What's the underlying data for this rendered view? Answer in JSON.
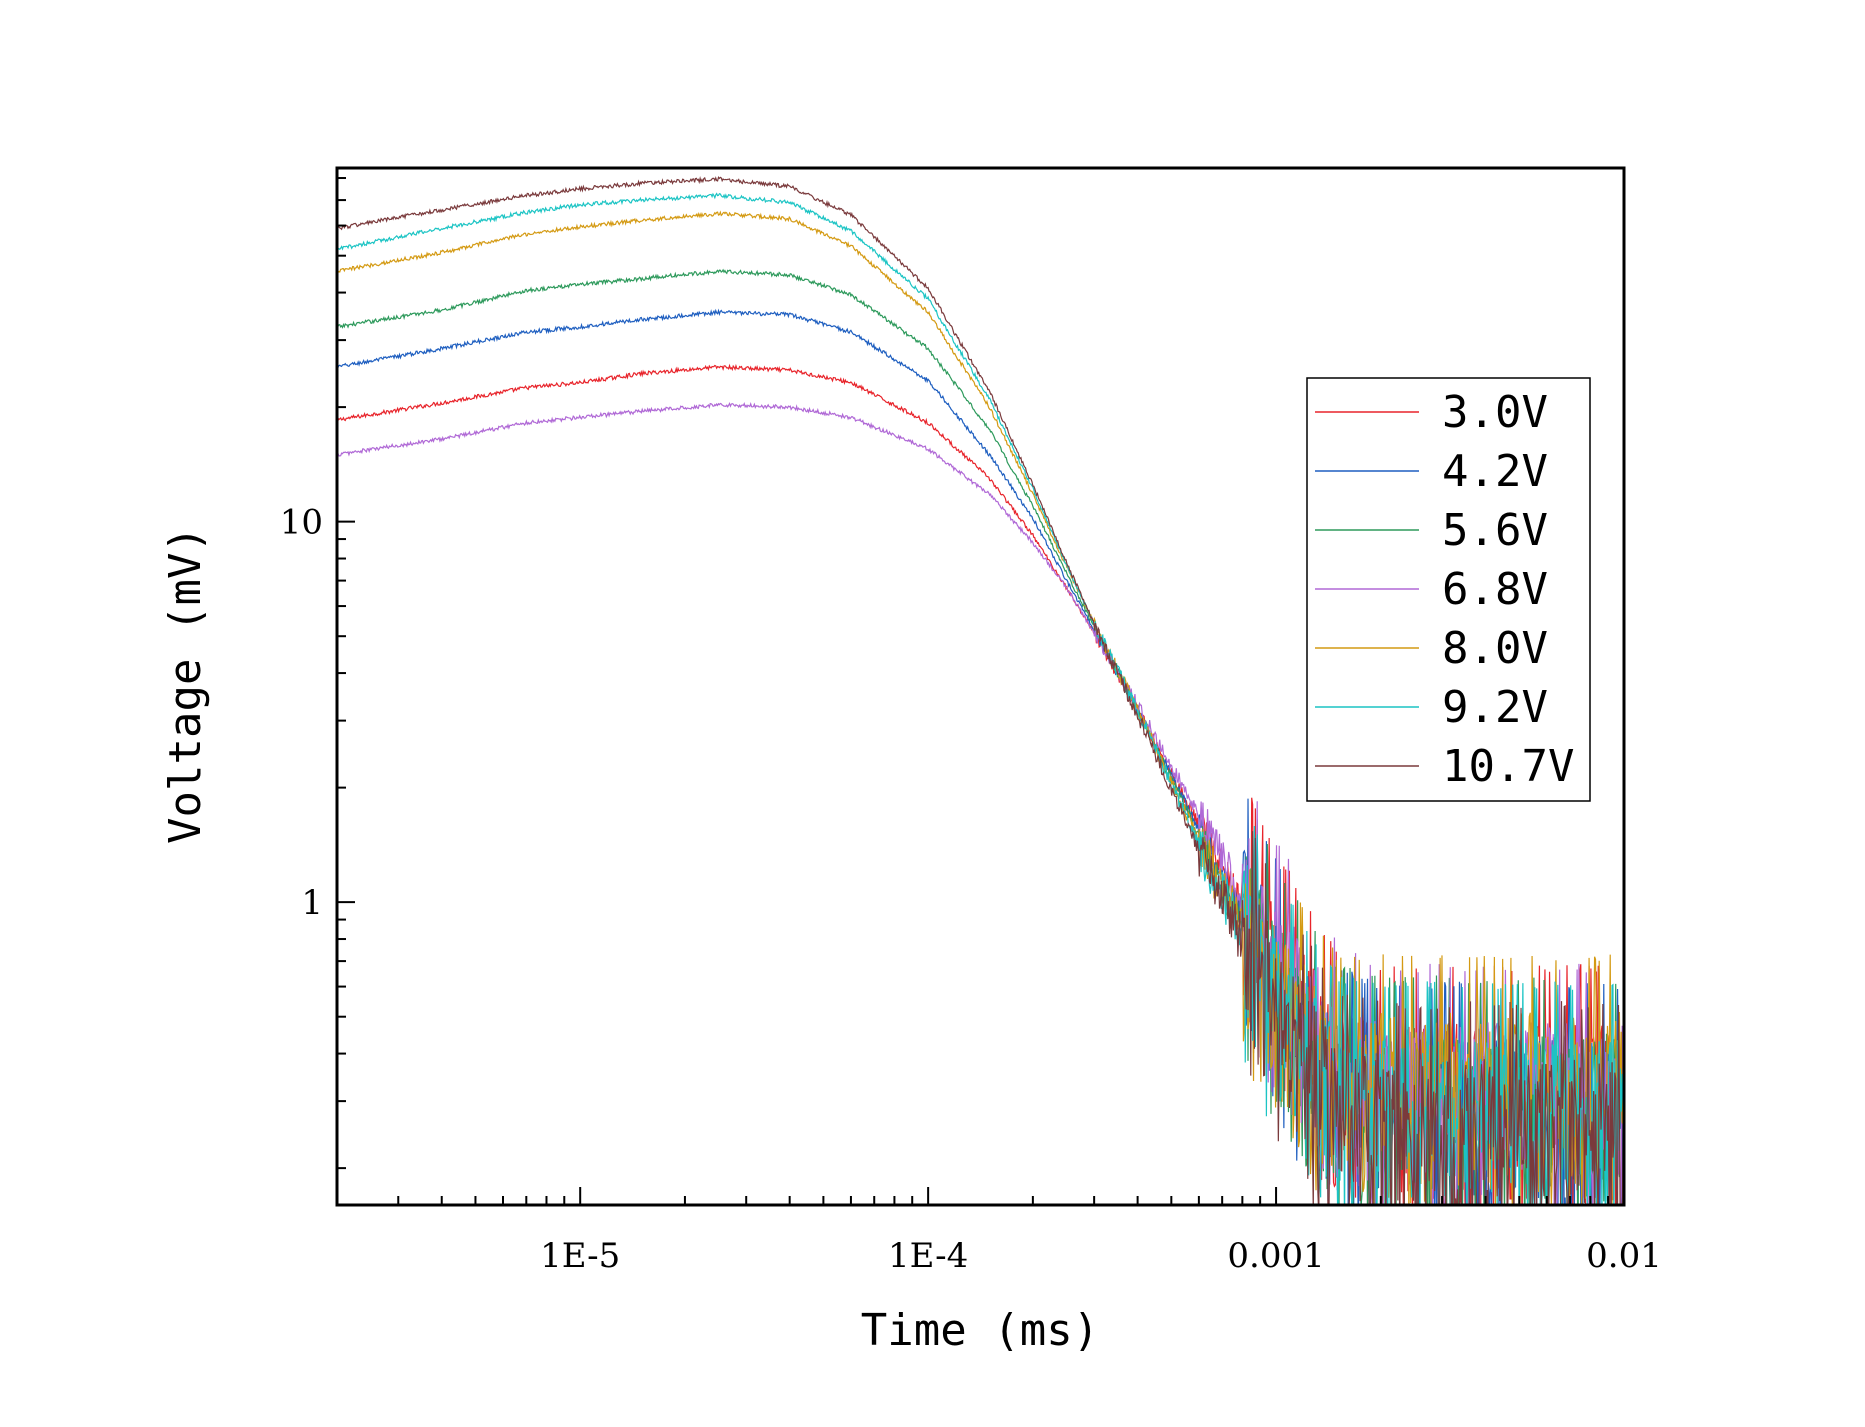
{
  "chart_data": {
    "type": "line",
    "title": "",
    "xlabel": "Time (ms)",
    "ylabel": "Voltage (mV)",
    "xscale": "log",
    "yscale": "log",
    "xlim": [
      2e-06,
      0.01
    ],
    "ylim": [
      0.16,
      85
    ],
    "xticks": [
      {
        "value": 1e-05,
        "label": "1E-5"
      },
      {
        "value": 0.0001,
        "label": "1E-4"
      },
      {
        "value": 0.001,
        "label": "0.001"
      },
      {
        "value": 0.01,
        "label": "0.01"
      }
    ],
    "yticks": [
      {
        "value": 1,
        "label": "1"
      },
      {
        "value": 10,
        "label": "10"
      }
    ],
    "grid": false,
    "legend": "right",
    "series": [
      {
        "name": "3.0V",
        "color": "#e8242b",
        "noise": 0.06,
        "floor": 0.3,
        "x": [
          2e-06,
          4e-06,
          7e-06,
          1e-05,
          1.5e-05,
          2.5e-05,
          4e-05,
          6e-05,
          0.0001,
          0.00015,
          0.0002,
          0.00025,
          0.0003,
          0.0004,
          0.0006,
          0.0008,
          0.001,
          0.0015,
          0.002,
          0.005,
          0.01
        ],
        "y": [
          18.5,
          20.5,
          22.5,
          23.2,
          24.5,
          25.5,
          25.0,
          23.2,
          18.2,
          13.0,
          9.2,
          6.7,
          5.1,
          3.2,
          1.6,
          0.95,
          0.6,
          0.33,
          0.3,
          0.3,
          0.3
        ]
      },
      {
        "name": "4.2V",
        "color": "#1f5fc0",
        "noise": 0.06,
        "floor": 0.27,
        "x": [
          2e-06,
          4e-06,
          7e-06,
          1e-05,
          1.5e-05,
          2.5e-05,
          4e-05,
          6e-05,
          0.0001,
          0.00015,
          0.0002,
          0.00025,
          0.0003,
          0.0004,
          0.0006,
          0.0008,
          0.001,
          0.0015,
          0.002,
          0.005,
          0.01
        ],
        "y": [
          25.5,
          28.5,
          31.5,
          32.5,
          34.0,
          35.5,
          35.0,
          31.5,
          23.5,
          15.0,
          10.2,
          7.0,
          5.2,
          3.2,
          1.55,
          0.9,
          0.57,
          0.3,
          0.27,
          0.27,
          0.27
        ]
      },
      {
        "name": "5.6V",
        "color": "#2e9a5c",
        "noise": 0.06,
        "floor": 0.28,
        "x": [
          2e-06,
          4e-06,
          7e-06,
          1e-05,
          1.5e-05,
          2.5e-05,
          4e-05,
          6e-05,
          0.0001,
          0.00015,
          0.0002,
          0.00025,
          0.0003,
          0.0004,
          0.0006,
          0.0008,
          0.001,
          0.0015,
          0.002,
          0.005,
          0.01
        ],
        "y": [
          32.5,
          36.0,
          40.5,
          42.0,
          43.5,
          45.5,
          44.5,
          39.5,
          28.5,
          17.5,
          11.0,
          7.3,
          5.3,
          3.2,
          1.5,
          0.88,
          0.55,
          0.3,
          0.28,
          0.28,
          0.28
        ]
      },
      {
        "name": "6.8V",
        "color": "#b069d6",
        "noise": 0.07,
        "floor": 0.29,
        "x": [
          2e-06,
          4e-06,
          7e-06,
          1e-05,
          1.5e-05,
          2.5e-05,
          4e-05,
          6e-05,
          0.0001,
          0.00015,
          0.0002,
          0.00025,
          0.0003,
          0.0004,
          0.0006,
          0.0008,
          0.001,
          0.0015,
          0.002,
          0.005,
          0.01
        ],
        "y": [
          15.0,
          16.5,
          18.2,
          18.8,
          19.5,
          20.3,
          20.0,
          18.8,
          15.5,
          11.8,
          8.8,
          6.7,
          5.1,
          3.3,
          1.7,
          1.0,
          0.65,
          0.35,
          0.3,
          0.3,
          0.3
        ]
      },
      {
        "name": "8.0V",
        "color": "#d49a13",
        "noise": 0.07,
        "floor": 0.32,
        "x": [
          2e-06,
          4e-06,
          7e-06,
          1e-05,
          1.5e-05,
          2.5e-05,
          4e-05,
          6e-05,
          0.0001,
          0.00015,
          0.0002,
          0.00025,
          0.0003,
          0.0004,
          0.0006,
          0.0008,
          0.001,
          0.0015,
          0.002,
          0.005,
          0.01
        ],
        "y": [
          45.5,
          51.0,
          57.0,
          59.5,
          62.0,
          64.5,
          62.5,
          53.0,
          35.5,
          20.0,
          11.8,
          7.6,
          5.4,
          3.2,
          1.45,
          0.85,
          0.55,
          0.32,
          0.32,
          0.32,
          0.32
        ]
      },
      {
        "name": "9.2V",
        "color": "#1cc4c4",
        "noise": 0.07,
        "floor": 0.27,
        "x": [
          2e-06,
          4e-06,
          7e-06,
          1e-05,
          1.5e-05,
          2.5e-05,
          4e-05,
          6e-05,
          0.0001,
          0.00015,
          0.0002,
          0.00025,
          0.0003,
          0.0004,
          0.0006,
          0.0008,
          0.001,
          0.0015,
          0.002,
          0.005,
          0.01
        ],
        "y": [
          52.0,
          59.0,
          65.0,
          68.0,
          70.0,
          72.0,
          69.0,
          58.0,
          38.5,
          21.0,
          12.2,
          7.7,
          5.4,
          3.2,
          1.42,
          0.83,
          0.53,
          0.28,
          0.27,
          0.27,
          0.27
        ]
      },
      {
        "name": "10.7V",
        "color": "#7a3a3c",
        "noise": 0.07,
        "floor": 0.24,
        "x": [
          2e-06,
          4e-06,
          7e-06,
          1e-05,
          1.5e-05,
          2.5e-05,
          4e-05,
          6e-05,
          0.0001,
          0.00015,
          0.0002,
          0.00025,
          0.0003,
          0.0004,
          0.0006,
          0.0008,
          0.001,
          0.0015,
          0.002,
          0.005,
          0.01
        ],
        "y": [
          59.0,
          66.0,
          72.0,
          75.0,
          77.5,
          79.5,
          76.0,
          64.0,
          41.0,
          22.0,
          12.5,
          7.8,
          5.4,
          3.1,
          1.38,
          0.8,
          0.5,
          0.26,
          0.24,
          0.24,
          0.24
        ]
      }
    ]
  }
}
